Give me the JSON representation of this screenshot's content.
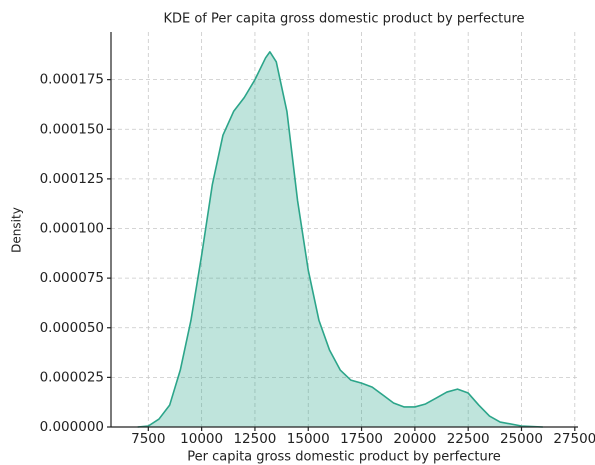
{
  "chart_data": {
    "type": "kde",
    "title": "KDE of Per capita gross domestic product by perfecture",
    "x_label": "Per capita gross domestic product by perfecture",
    "y_label": "Density",
    "color": "#2ca58a",
    "grid": true,
    "x": [
      7000,
      7500,
      8000,
      8500,
      9000,
      9500,
      10000,
      10500,
      11000,
      11500,
      12000,
      12500,
      13000,
      13200,
      13500,
      14000,
      14500,
      15000,
      15500,
      16000,
      16500,
      17000,
      17500,
      18000,
      18500,
      19000,
      19500,
      20000,
      20500,
      21000,
      21500,
      22000,
      22500,
      23000,
      23500,
      24000,
      25000,
      26000
    ],
    "values": [
      0,
      5e-07,
      4e-06,
      1.1e-05,
      2.87e-05,
      5.38e-05,
      8.65e-05,
      0.000122,
      0.000147,
      0.000159,
      0.000166,
      0.000175,
      0.000186,
      0.000189,
      0.000184,
      0.000159,
      0.000114,
      7.9e-05,
      5.38e-05,
      3.87e-05,
      2.87e-05,
      2.36e-05,
      2.21e-05,
      2.01e-05,
      1.61e-05,
      1.21e-05,
      1.01e-05,
      1.01e-05,
      1.16e-05,
      1.46e-05,
      1.76e-05,
      1.91e-05,
      1.71e-05,
      1.1e-05,
      5.5e-06,
      2.5e-06,
      5e-07,
      0
    ],
    "xlim": [
      5750,
      27650
    ],
    "ylim": [
      0,
      0.000199
    ],
    "xticks": [
      7500,
      10000,
      12500,
      15000,
      17500,
      20000,
      22500,
      25000,
      27500
    ],
    "yticks": [
      {
        "value": 0,
        "label": "0.000000"
      },
      {
        "value": 2.5e-05,
        "label": "0.000025"
      },
      {
        "value": 5e-05,
        "label": "0.000050"
      },
      {
        "value": 7.5e-05,
        "label": "0.000075"
      },
      {
        "value": 0.0001,
        "label": "0.000100"
      },
      {
        "value": 0.000125,
        "label": "0.000125"
      },
      {
        "value": 0.00015,
        "label": "0.000150"
      },
      {
        "value": 0.000175,
        "label": "0.000175"
      }
    ]
  }
}
